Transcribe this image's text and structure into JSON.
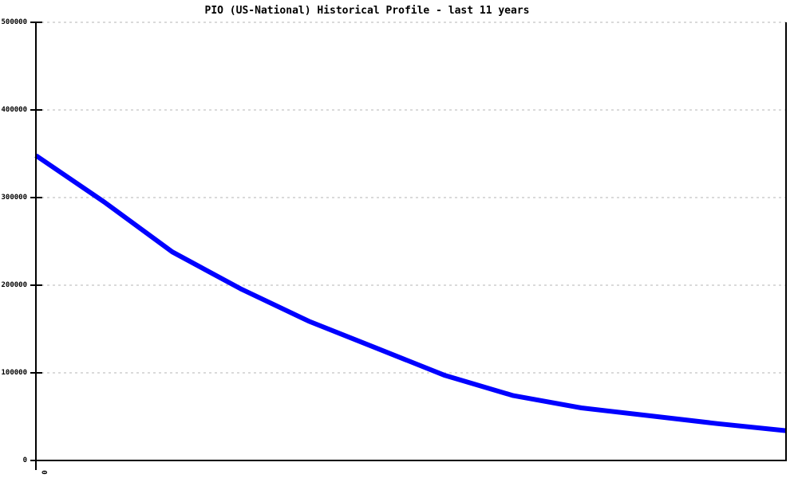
{
  "chart_data": {
    "type": "line",
    "title": "PIO (US-National) Historical Profile - last 11 years",
    "series": [
      {
        "name": "PIO (US-National)",
        "color": "#0000ff",
        "values": [
          348000,
          295000,
          238000,
          196000,
          159000,
          128000,
          97000,
          74000,
          60000,
          51000,
          42000,
          34000
        ]
      }
    ],
    "x_span_years": 11,
    "xlabel": "",
    "ylabel": "",
    "ylim": [
      0,
      500000
    ],
    "yticks": [
      "0",
      "100000",
      "200000",
      "300000",
      "400000",
      "500000"
    ],
    "xtick_label": "0",
    "grid": "horizontal-dashed",
    "legend": "none",
    "colors": {
      "line": "#0000ff",
      "grid": "#b4b4b4",
      "axis": "#000000",
      "background": "#ffffff"
    }
  }
}
